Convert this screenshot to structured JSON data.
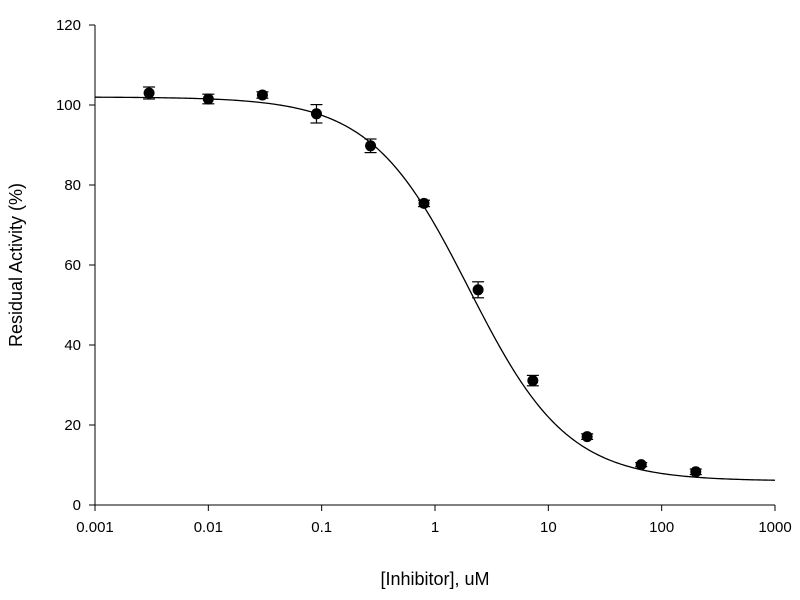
{
  "chart_data": {
    "type": "scatter",
    "title": "",
    "xlabel": "[Inhibitor], uM",
    "ylabel": "Residual Activity (%)",
    "x_scale": "log",
    "xlim": [
      0.001,
      1000
    ],
    "ylim": [
      0,
      120
    ],
    "x_ticks": [
      0.001,
      0.01,
      0.1,
      1,
      10,
      100,
      1000
    ],
    "x_tick_labels": [
      "0.001",
      "0.01",
      "0.1",
      "1",
      "10",
      "100",
      "1000"
    ],
    "y_ticks": [
      0,
      20,
      40,
      60,
      80,
      100,
      120
    ],
    "y_tick_labels": [
      "0",
      "20",
      "40",
      "60",
      "80",
      "100",
      "120"
    ],
    "grid": false,
    "legend": "none",
    "series": [
      {
        "marker": "filled-circle",
        "x": [
          0.003,
          0.01,
          0.03,
          0.09,
          0.27,
          0.8,
          2.4,
          7.3,
          22,
          66,
          200
        ],
        "y": [
          103,
          101.5,
          102.5,
          97.8,
          89.8,
          75.4,
          53.8,
          31.1,
          17.1,
          10.1,
          8.3
        ],
        "error": [
          1.5,
          1.2,
          0.8,
          2.3,
          1.7,
          0.8,
          2.0,
          1.3,
          0.7,
          0.5,
          0.7
        ]
      }
    ],
    "fit_curve": {
      "type": "four-parameter-logistic",
      "top": 102,
      "bottom": 6,
      "ic50": 2.0,
      "hill_slope": 1.0,
      "x_range": [
        0.001,
        1000
      ]
    }
  }
}
